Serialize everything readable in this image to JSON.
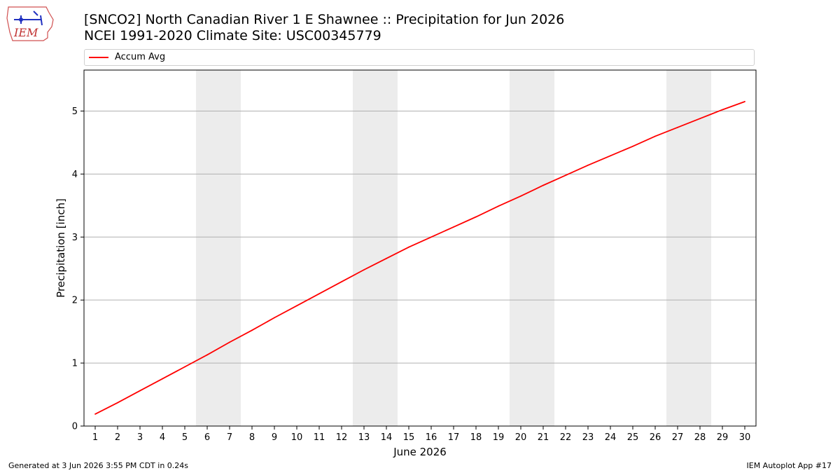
{
  "header": {
    "logo_text": "IEM",
    "title_line1": "[SNCO2] North Canadian River 1 E Shawnee :: Precipitation for Jun 2026",
    "title_line2": "NCEI 1991-2020 Climate Site: USC00345779"
  },
  "footer": {
    "generated": "Generated at 3 Jun 2026 3:55 PM CDT in 0.24s",
    "app": "IEM Autoplot App #17"
  },
  "colors": {
    "line": "#ff0000",
    "weekend_shade": "#ececec",
    "grid": "#b0b0b0"
  },
  "chart_data": {
    "type": "line",
    "title": "[SNCO2] North Canadian River 1 E Shawnee :: Precipitation for Jun 2026",
    "subtitle": "NCEI 1991-2020 Climate Site: USC00345779",
    "xlabel": "June 2026",
    "ylabel": "Precipitation [inch]",
    "xlim": [
      0.5,
      30.5
    ],
    "ylim": [
      0,
      5.65
    ],
    "yticks": [
      0,
      1,
      2,
      3,
      4,
      5
    ],
    "x": [
      1,
      2,
      3,
      4,
      5,
      6,
      7,
      8,
      9,
      10,
      11,
      12,
      13,
      14,
      15,
      16,
      17,
      18,
      19,
      20,
      21,
      22,
      23,
      24,
      25,
      26,
      27,
      28,
      29,
      30
    ],
    "weekend_shading": [
      [
        5.5,
        7.5
      ],
      [
        12.5,
        14.5
      ],
      [
        19.5,
        21.5
      ],
      [
        26.5,
        28.5
      ]
    ],
    "grid": "horizontal",
    "legend_position": "top",
    "series": [
      {
        "name": "Accum Avg",
        "color": "#ff0000",
        "values": [
          0.19,
          0.37,
          0.56,
          0.75,
          0.94,
          1.13,
          1.33,
          1.52,
          1.72,
          1.91,
          2.1,
          2.29,
          2.48,
          2.66,
          2.84,
          3.0,
          3.16,
          3.32,
          3.49,
          3.65,
          3.82,
          3.98,
          4.14,
          4.29,
          4.44,
          4.6,
          4.74,
          4.88,
          5.02,
          5.15
        ]
      }
    ]
  }
}
